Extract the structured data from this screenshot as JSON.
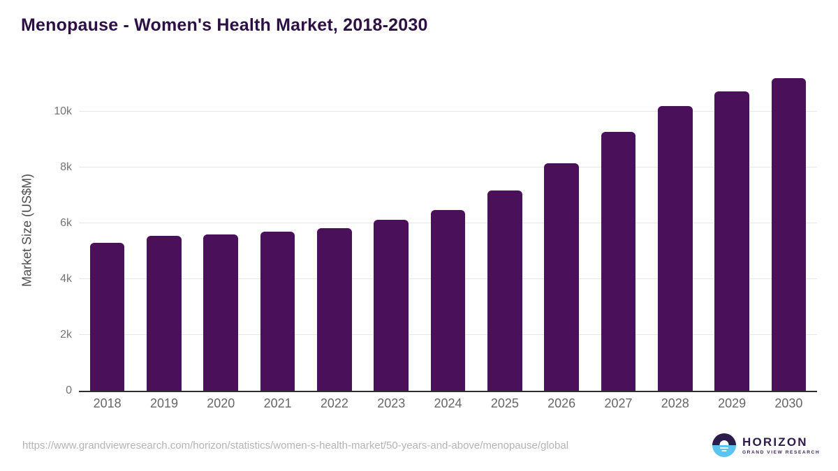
{
  "chart_data": {
    "type": "bar",
    "title": "Menopause - Women's Health Market, 2018-2030",
    "categories": [
      "2018",
      "2019",
      "2020",
      "2021",
      "2022",
      "2023",
      "2024",
      "2025",
      "2026",
      "2027",
      "2028",
      "2029",
      "2030"
    ],
    "values": [
      5300,
      5550,
      5610,
      5700,
      5830,
      6120,
      6480,
      7180,
      8150,
      9280,
      10190,
      10730,
      11210
    ],
    "xlabel": "",
    "ylabel": "Market Size (US$M)",
    "ylim": [
      0,
      11500
    ],
    "yticks": [
      {
        "label": "0",
        "value": 0
      },
      {
        "label": "2k",
        "value": 2000
      },
      {
        "label": "4k",
        "value": 4000
      },
      {
        "label": "6k",
        "value": 6000
      },
      {
        "label": "8k",
        "value": 8000
      },
      {
        "label": "10k",
        "value": 10000
      }
    ],
    "grid": "horizontal",
    "legend": "none",
    "bar_color": "#4A1059"
  },
  "colors": {
    "bar": "#4A1059",
    "title": "#2C1045",
    "gridline": "#e5e5e5",
    "axis_line": "#2e2e2e",
    "tick_label": "#757575",
    "x_label": "#666666",
    "url_text": "#b4b4b4",
    "logo_purple": "#2D1B4B",
    "logo_blue": "#5BC3F0"
  },
  "footer": {
    "source_url": "https://www.grandviewresearch.com/horizon/statistics/women-s-health-market/50-years-and-above/menopause/global",
    "logo": {
      "name": "HORIZON",
      "subtitle": "GRAND VIEW RESEARCH"
    }
  }
}
